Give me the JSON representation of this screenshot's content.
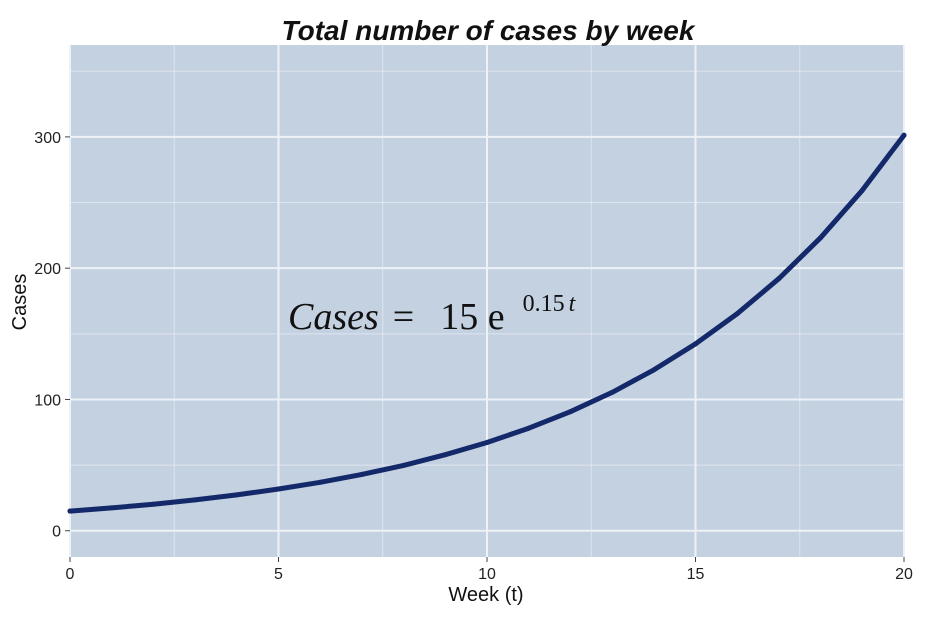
{
  "chart_data": {
    "type": "line",
    "title": "Total number of cases by week",
    "xlabel": "Week (t)",
    "ylabel": "Cases",
    "xlim": [
      0,
      20
    ],
    "ylim": [
      -20,
      370
    ],
    "x_ticks": [
      0,
      5,
      10,
      15,
      20
    ],
    "y_ticks": [
      0,
      100,
      200,
      300
    ],
    "grid": true,
    "background_color": "#c4d1e0",
    "grid_color": "#eef2f7",
    "series": [
      {
        "color": "#14296a",
        "x": [
          0,
          1,
          2,
          3,
          4,
          5,
          6,
          7,
          8,
          9,
          10,
          11,
          12,
          13,
          14,
          15,
          16,
          17,
          18,
          19,
          20
        ],
        "values": [
          15,
          17.4,
          20.2,
          23.5,
          27.3,
          31.8,
          36.9,
          42.9,
          49.8,
          57.9,
          67.2,
          78.1,
          90.7,
          105.4,
          122.5,
          142.3,
          165.3,
          192.1,
          223.2,
          259.3,
          301.3
        ]
      }
    ],
    "annotation": {
      "lhs": "Cases",
      "equals": "=",
      "coefficient": "15 e",
      "exponent_number": "0.15",
      "exponent_var": "t"
    }
  }
}
